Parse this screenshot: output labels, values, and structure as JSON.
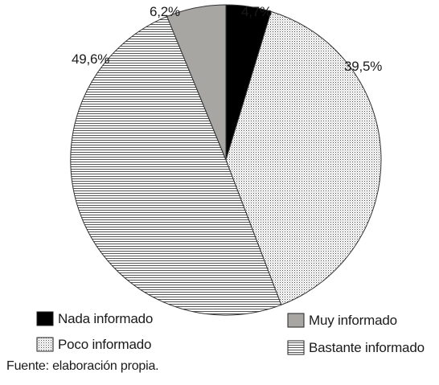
{
  "chart_data": {
    "type": "pie",
    "title": "",
    "slices": [
      {
        "key": "nada",
        "label": "Nada informado",
        "value": 4.7,
        "display": "4,7%",
        "pattern": "solid-black",
        "fill": "#000000"
      },
      {
        "key": "poco",
        "label": "Poco informado",
        "value": 39.5,
        "display": "39,5%",
        "pattern": "dots",
        "fill": "#ffffff"
      },
      {
        "key": "bastante",
        "label": "Bastante informado",
        "value": 49.6,
        "display": "49,6%",
        "pattern": "horizontal-lines",
        "fill": "#ffffff"
      },
      {
        "key": "muy",
        "label": "Muy informado",
        "value": 6.2,
        "display": "6,2%",
        "pattern": "solid-gray",
        "fill": "#a8a6a3"
      }
    ],
    "start_angle": "top (12 o'clock)",
    "direction": "clockwise",
    "legend_position": "bottom",
    "legend": [
      {
        "label": "Nada informado",
        "pattern": "solid-black"
      },
      {
        "label": "Muy informado",
        "pattern": "solid-gray"
      },
      {
        "label": "Poco informado",
        "pattern": "dots"
      },
      {
        "label": "Bastante informado",
        "pattern": "horizontal-lines"
      }
    ],
    "source_note": "Fuente: elaboración propia."
  }
}
